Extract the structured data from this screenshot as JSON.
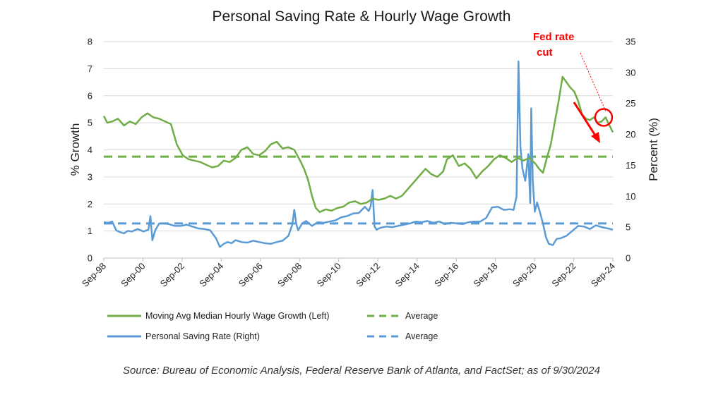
{
  "chart_data": {
    "type": "line",
    "title": "Personal Saving Rate & Hourly Wage Growth",
    "ylabel_left": "% Growth",
    "ylabel_right": "Percent (%)",
    "ylim_left": [
      0,
      8
    ],
    "ylim_right": [
      0,
      35
    ],
    "yticks_left": [
      "0",
      "1",
      "2",
      "3",
      "4",
      "5",
      "6",
      "7",
      "8"
    ],
    "yticks_right": [
      "0",
      "5",
      "10",
      "15",
      "20",
      "25",
      "30",
      "35"
    ],
    "xlim": [
      1998.67,
      2024.67
    ],
    "x_tick_labels": [
      "Sep-98",
      "Sep-00",
      "Sep-02",
      "Sep-04",
      "Sep-06",
      "Sep-08",
      "Sep-10",
      "Sep-12",
      "Sep-14",
      "Sep-16",
      "Sep-18",
      "Sep-20",
      "Sep-22",
      "Sep-24"
    ],
    "grid": "horizontal",
    "colors": {
      "wage": "#70ad47",
      "saving": "#5b9bd5",
      "annotation": "#ff0000"
    },
    "series": [
      {
        "name": "Moving Avg Median Hourly Wage Growth (Left)",
        "axis": "left",
        "x": [
          1998.67,
          1998.85,
          1999.1,
          1999.4,
          1999.7,
          2000.0,
          2000.3,
          2000.6,
          2000.9,
          2001.2,
          2001.5,
          2001.8,
          2002.1,
          2002.4,
          2002.7,
          2003.0,
          2003.3,
          2003.6,
          2003.9,
          2004.2,
          2004.5,
          2004.8,
          2005.1,
          2005.4,
          2005.7,
          2006.0,
          2006.3,
          2006.6,
          2006.9,
          2007.2,
          2007.5,
          2007.8,
          2008.1,
          2008.4,
          2008.7,
          2008.9,
          2009.1,
          2009.3,
          2009.5,
          2009.7,
          2010.0,
          2010.3,
          2010.6,
          2010.9,
          2011.2,
          2011.5,
          2011.8,
          2012.1,
          2012.4,
          2012.7,
          2013.0,
          2013.3,
          2013.6,
          2013.9,
          2014.2,
          2014.5,
          2014.8,
          2015.1,
          2015.4,
          2015.7,
          2016.0,
          2016.2,
          2016.5,
          2016.8,
          2017.1,
          2017.4,
          2017.7,
          2018.0,
          2018.3,
          2018.6,
          2018.9,
          2019.2,
          2019.5,
          2019.8,
          2020.1,
          2020.4,
          2020.7,
          2020.9,
          2021.1,
          2021.3,
          2021.5,
          2021.7,
          2021.9,
          2022.1,
          2022.3,
          2022.5,
          2022.7,
          2022.9,
          2023.1,
          2023.3,
          2023.5,
          2023.7,
          2023.9,
          2024.1,
          2024.3,
          2024.5,
          2024.67
        ],
        "values": [
          5.25,
          5.0,
          5.05,
          5.15,
          4.9,
          5.05,
          4.95,
          5.2,
          5.35,
          5.2,
          5.15,
          5.05,
          4.95,
          4.2,
          3.8,
          3.65,
          3.6,
          3.55,
          3.45,
          3.35,
          3.4,
          3.6,
          3.55,
          3.7,
          4.0,
          4.1,
          3.85,
          3.8,
          3.95,
          4.2,
          4.3,
          4.05,
          4.1,
          4.0,
          3.6,
          3.3,
          2.9,
          2.3,
          1.85,
          1.7,
          1.8,
          1.75,
          1.85,
          1.9,
          2.05,
          2.1,
          2.0,
          2.05,
          2.2,
          2.15,
          2.2,
          2.3,
          2.2,
          2.3,
          2.55,
          2.8,
          3.05,
          3.3,
          3.1,
          3.0,
          3.2,
          3.65,
          3.8,
          3.4,
          3.5,
          3.3,
          2.95,
          3.2,
          3.4,
          3.65,
          3.8,
          3.7,
          3.55,
          3.7,
          3.6,
          3.7,
          3.5,
          3.3,
          3.15,
          3.7,
          4.2,
          5.0,
          5.8,
          6.7,
          6.5,
          6.3,
          6.15,
          5.8,
          5.3,
          5.15,
          5.1,
          5.2,
          5.0,
          5.05,
          5.2,
          4.9,
          4.65
        ]
      },
      {
        "name": "Average",
        "axis": "left",
        "style": "dashed",
        "value": 3.75
      },
      {
        "name": "Personal Saving Rate (Right)",
        "axis": "right",
        "x": [
          1998.67,
          1998.9,
          1999.1,
          1999.3,
          1999.5,
          1999.7,
          1999.9,
          2000.1,
          2000.4,
          2000.7,
          2000.95,
          2001.05,
          2001.15,
          2001.3,
          2001.5,
          2001.7,
          2002.0,
          2002.3,
          2002.6,
          2002.9,
          2003.2,
          2003.5,
          2003.8,
          2004.1,
          2004.4,
          2004.6,
          2004.8,
          2005.0,
          2005.2,
          2005.4,
          2005.7,
          2006.0,
          2006.3,
          2006.6,
          2006.9,
          2007.2,
          2007.5,
          2007.8,
          2008.1,
          2008.3,
          2008.4,
          2008.5,
          2008.6,
          2008.8,
          2009.0,
          2009.3,
          2009.6,
          2009.9,
          2010.2,
          2010.5,
          2010.8,
          2011.1,
          2011.4,
          2011.7,
          2012.0,
          2012.2,
          2012.3,
          2012.4,
          2012.5,
          2012.6,
          2012.8,
          2013.1,
          2013.4,
          2013.7,
          2014.0,
          2014.3,
          2014.6,
          2014.9,
          2015.2,
          2015.5,
          2015.8,
          2016.1,
          2016.4,
          2016.7,
          2017.0,
          2017.3,
          2017.6,
          2017.9,
          2018.2,
          2018.5,
          2018.8,
          2019.1,
          2019.4,
          2019.6,
          2019.75,
          2019.85,
          2019.95,
          2020.05,
          2020.2,
          2020.35,
          2020.45,
          2020.5,
          2020.58,
          2020.68,
          2020.8,
          2020.95,
          2021.1,
          2021.25,
          2021.4,
          2021.6,
          2021.8,
          2022.0,
          2022.3,
          2022.6,
          2022.9,
          2023.2,
          2023.5,
          2023.8,
          2024.1,
          2024.4,
          2024.67
        ],
        "values": [
          5.8,
          5.7,
          5.9,
          4.5,
          4.2,
          4.0,
          4.4,
          4.3,
          4.7,
          4.3,
          4.6,
          6.8,
          2.9,
          4.5,
          5.6,
          5.6,
          5.5,
          5.2,
          5.2,
          5.4,
          5.1,
          4.8,
          4.7,
          4.5,
          3.2,
          1.8,
          2.3,
          2.6,
          2.4,
          2.9,
          2.6,
          2.5,
          2.8,
          2.6,
          2.4,
          2.3,
          2.6,
          2.8,
          3.6,
          5.4,
          7.8,
          5.5,
          4.5,
          5.6,
          6.0,
          5.2,
          5.8,
          5.7,
          5.9,
          6.1,
          6.6,
          6.8,
          7.2,
          7.3,
          8.3,
          7.6,
          8.4,
          11.0,
          5.1,
          4.6,
          4.9,
          5.1,
          5.0,
          5.2,
          5.4,
          5.6,
          5.9,
          5.8,
          6.0,
          5.7,
          5.9,
          5.5,
          5.7,
          5.6,
          5.5,
          5.8,
          5.9,
          5.9,
          6.5,
          8.2,
          8.3,
          7.8,
          7.9,
          7.8,
          10.0,
          31.8,
          18.0,
          14.5,
          12.5,
          16.8,
          8.9,
          24.2,
          12.5,
          7.5,
          9.0,
          7.4,
          5.6,
          3.4,
          2.3,
          2.1,
          3.1,
          3.2,
          3.6,
          4.4,
          5.2,
          5.1,
          4.7,
          5.3,
          5.0,
          4.8,
          4.6
        ]
      },
      {
        "name": "Average",
        "axis": "right",
        "style": "dashed",
        "value": 5.6
      }
    ],
    "legend_position": "bottom",
    "annotations": [
      {
        "text_line1": "Fed rate",
        "text_line2": "cut",
        "x": 2024.2,
        "y_left": 5.2
      }
    ]
  },
  "footer": {
    "source": "Source: Bureau of Economic Analysis, Federal Reserve Bank of Atlanta, and FactSet; as of 9/30/2024"
  }
}
